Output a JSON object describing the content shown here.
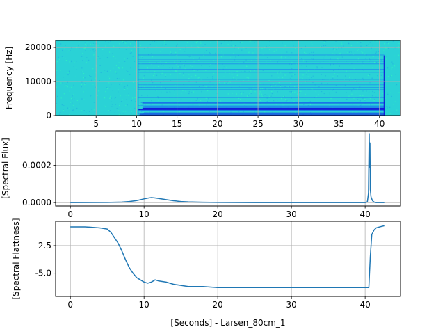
{
  "chart_data": [
    {
      "type": "heatmap",
      "ylabel": "Frequency [Hz]",
      "xlim": [
        0,
        42.6
      ],
      "ylim": [
        0,
        22050
      ],
      "xticks": [
        "5",
        "10",
        "15",
        "20",
        "25",
        "30",
        "35",
        "40"
      ],
      "yticks": [
        "0",
        "10000",
        "20000"
      ],
      "xtick_values": [
        5,
        10,
        15,
        20,
        25,
        30,
        35,
        40
      ],
      "ytick_values": [
        0,
        10000,
        20000
      ],
      "grid": true,
      "colormap": [
        "#2ad2d6",
        "#30f0c0",
        "#1a7ef0",
        "#1010d8"
      ],
      "onset_x": 10.2,
      "offset_x": 40.6,
      "energy_band_hz": [
        0,
        4000
      ]
    },
    {
      "type": "line",
      "ylabel": "[Spectral Flux]",
      "xlim": [
        -2,
        44.8
      ],
      "ylim": [
        -1.8e-05,
        0.000385
      ],
      "xticks": [
        "0",
        "10",
        "20",
        "30",
        "40"
      ],
      "yticks": [
        "0.0000",
        "0.0002"
      ],
      "xtick_values": [
        0,
        10,
        20,
        30,
        40
      ],
      "ytick_values": [
        0,
        0.0002
      ],
      "grid": true,
      "series": [
        {
          "color": "#1f77b4",
          "x": [
            0,
            5,
            7,
            8,
            9,
            10,
            10.5,
            11,
            11.5,
            12,
            13,
            14,
            15,
            16,
            18,
            20,
            25,
            30,
            35,
            40,
            40.3,
            40.45,
            40.55,
            40.6,
            40.65,
            40.7,
            40.8,
            41,
            41.2,
            41.5,
            42.6
          ],
          "y": [
            0,
            1e-06,
            3e-06,
            6e-06,
            1.1e-05,
            2e-05,
            2.4e-05,
            2.7e-05,
            2.5e-05,
            2.2e-05,
            1.6e-05,
            1e-05,
            6e-06,
            4e-06,
            2e-06,
            1e-06,
            0,
            0,
            0,
            0,
            4e-06,
            5e-05,
            0.00037,
            0.00019,
            0.00032,
            7e-05,
            3e-05,
            1e-05,
            3e-06,
            0,
            0
          ]
        }
      ]
    },
    {
      "type": "line",
      "ylabel": "[Spectral Flattness]",
      "xlabel": "[Seconds] - Larsen_80cm_1",
      "xlim": [
        -2,
        44.8
      ],
      "ylim": [
        -7.1,
        -0.3
      ],
      "xticks": [
        "0",
        "10",
        "20",
        "30",
        "40"
      ],
      "yticks": [
        "-5.0",
        "-2.5"
      ],
      "xtick_values": [
        0,
        10,
        20,
        30,
        40
      ],
      "ytick_values": [
        -5,
        -2.5
      ],
      "grid": true,
      "series": [
        {
          "color": "#1f77b4",
          "x": [
            0,
            2,
            4,
            5,
            5.5,
            6,
            6.5,
            7,
            7.5,
            8,
            8.5,
            9,
            9.5,
            10,
            10.5,
            11,
            11.5,
            12,
            13,
            14,
            15,
            16,
            18,
            20,
            25,
            30,
            35,
            40.5,
            40.7,
            40.9,
            41.2,
            41.5,
            42,
            42.6
          ],
          "y": [
            -0.8,
            -0.8,
            -0.9,
            -1.0,
            -1.3,
            -1.8,
            -2.3,
            -3.0,
            -3.8,
            -4.5,
            -5.0,
            -5.4,
            -5.6,
            -5.8,
            -5.9,
            -5.8,
            -5.6,
            -5.7,
            -5.8,
            -6.0,
            -6.1,
            -6.2,
            -6.2,
            -6.3,
            -6.3,
            -6.3,
            -6.3,
            -6.3,
            -3.5,
            -1.5,
            -1.1,
            -0.9,
            -0.8,
            -0.7
          ]
        }
      ]
    }
  ]
}
